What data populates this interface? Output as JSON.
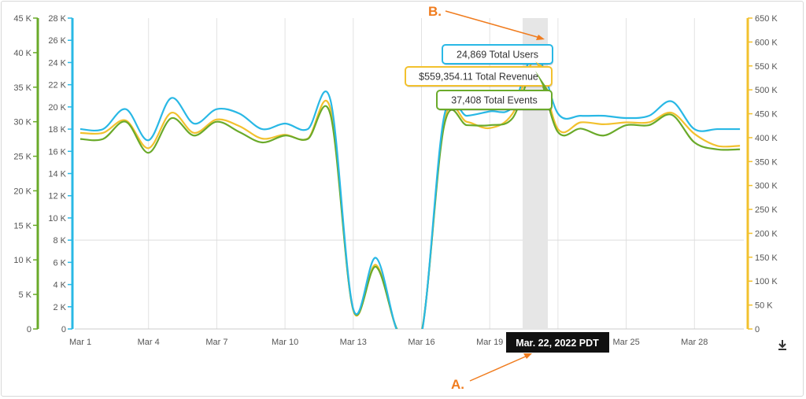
{
  "chart_data": {
    "type": "line",
    "x": [
      "Mar 1",
      "Mar 2",
      "Mar 3",
      "Mar 4",
      "Mar 5",
      "Mar 6",
      "Mar 7",
      "Mar 8",
      "Mar 9",
      "Mar 10",
      "Mar 11",
      "Mar 12",
      "Mar 13",
      "Mar 14",
      "Mar 15",
      "Mar 16",
      "Mar 17",
      "Mar 18",
      "Mar 19",
      "Mar 20",
      "Mar 21",
      "Mar 22",
      "Mar 23",
      "Mar 24",
      "Mar 25",
      "Mar 26",
      "Mar 27",
      "Mar 28",
      "Mar 29",
      "Mar 30"
    ],
    "x_tick_labels": [
      "Mar 1",
      "Mar 4",
      "Mar 7",
      "Mar 10",
      "Mar 13",
      "Mar 16",
      "Mar 19",
      "Mar 22",
      "Mar 25",
      "Mar 28"
    ],
    "series": [
      {
        "name": "Total Users",
        "axis": "middle",
        "color": "#29b8e5",
        "values": [
          18000,
          18000,
          19800,
          17000,
          20800,
          18500,
          19800,
          19400,
          18000,
          18500,
          18000,
          20600,
          1800,
          6400,
          -500,
          -500,
          19200,
          19200,
          19600,
          20000,
          24869,
          19400,
          19200,
          19200,
          19000,
          19200,
          20500,
          18000,
          18000,
          18000
        ]
      },
      {
        "name": "Total Revenue",
        "axis": "right",
        "color": "#f2c12e",
        "values": [
          410000,
          410000,
          436000,
          378000,
          452000,
          410000,
          438000,
          424000,
          398000,
          406000,
          398000,
          460000,
          39000,
          134000,
          -10000,
          -10000,
          434000,
          433000,
          420000,
          450000,
          559354.11,
          418000,
          432000,
          428000,
          432000,
          432000,
          452000,
          408000,
          383000,
          383000
        ]
      },
      {
        "name": "Total Events",
        "axis": "left",
        "color": "#6aaa2a",
        "values": [
          27500,
          27500,
          30000,
          25500,
          30500,
          28000,
          30000,
          28500,
          27000,
          28000,
          27500,
          31000,
          2800,
          9000,
          -500,
          -500,
          29500,
          29500,
          29500,
          30500,
          37408,
          28500,
          29000,
          28000,
          29500,
          29500,
          31000,
          27000,
          26000,
          26000
        ]
      }
    ],
    "left_axis": {
      "color": "#6aaa2a",
      "ylim": [
        0,
        45000
      ],
      "ticks": [
        0,
        5000,
        10000,
        15000,
        20000,
        25000,
        30000,
        35000,
        40000,
        45000
      ],
      "tick_labels": [
        "0",
        "5 K",
        "10 K",
        "15 K",
        "20 K",
        "25 K",
        "30 K",
        "35 K",
        "40 K",
        "45 K"
      ]
    },
    "middle_axis": {
      "color": "#29b8e5",
      "ylim": [
        0,
        28000
      ],
      "ticks": [
        0,
        2000,
        4000,
        6000,
        8000,
        10000,
        12000,
        14000,
        16000,
        18000,
        20000,
        22000,
        24000,
        26000,
        28000
      ],
      "tick_labels": [
        "0",
        "2 K",
        "4 K",
        "6 K",
        "8 K",
        "10 K",
        "12 K",
        "14 K",
        "16 K",
        "18 K",
        "20 K",
        "22 K",
        "24 K",
        "26 K",
        "28 K"
      ]
    },
    "right_axis": {
      "color": "#f2c12e",
      "ylim": [
        0,
        650000
      ],
      "ticks": [
        0,
        50000,
        100000,
        150000,
        200000,
        250000,
        300000,
        350000,
        400000,
        450000,
        500000,
        550000,
        600000,
        650000
      ],
      "tick_labels": [
        "0",
        "50 K",
        "100 K",
        "150 K",
        "200 K",
        "250 K",
        "300 K",
        "350 K",
        "400 K",
        "450 K",
        "500 K",
        "550 K",
        "600 K",
        "650 K"
      ]
    },
    "highlight": {
      "date_label": "Mar. 22, 2022 PDT",
      "index": 20,
      "tooltips": [
        {
          "series": "Total Users",
          "text": "24,869 Total Users",
          "color": "#29b8e5"
        },
        {
          "series": "Total Revenue",
          "text": "$559,354.11 Total Revenue",
          "color": "#f2c12e"
        },
        {
          "series": "Total Events",
          "text": "37,408 Total Events",
          "color": "#6aaa2a"
        }
      ]
    },
    "annotations": [
      {
        "text": "A.",
        "color": "#f07c1e"
      },
      {
        "text": "B.",
        "color": "#f07c1e"
      }
    ],
    "grid": "vertical lines at labeled dates, one horizontal line",
    "legend": "none"
  },
  "toolbar": {
    "download_icon": "download-icon"
  }
}
